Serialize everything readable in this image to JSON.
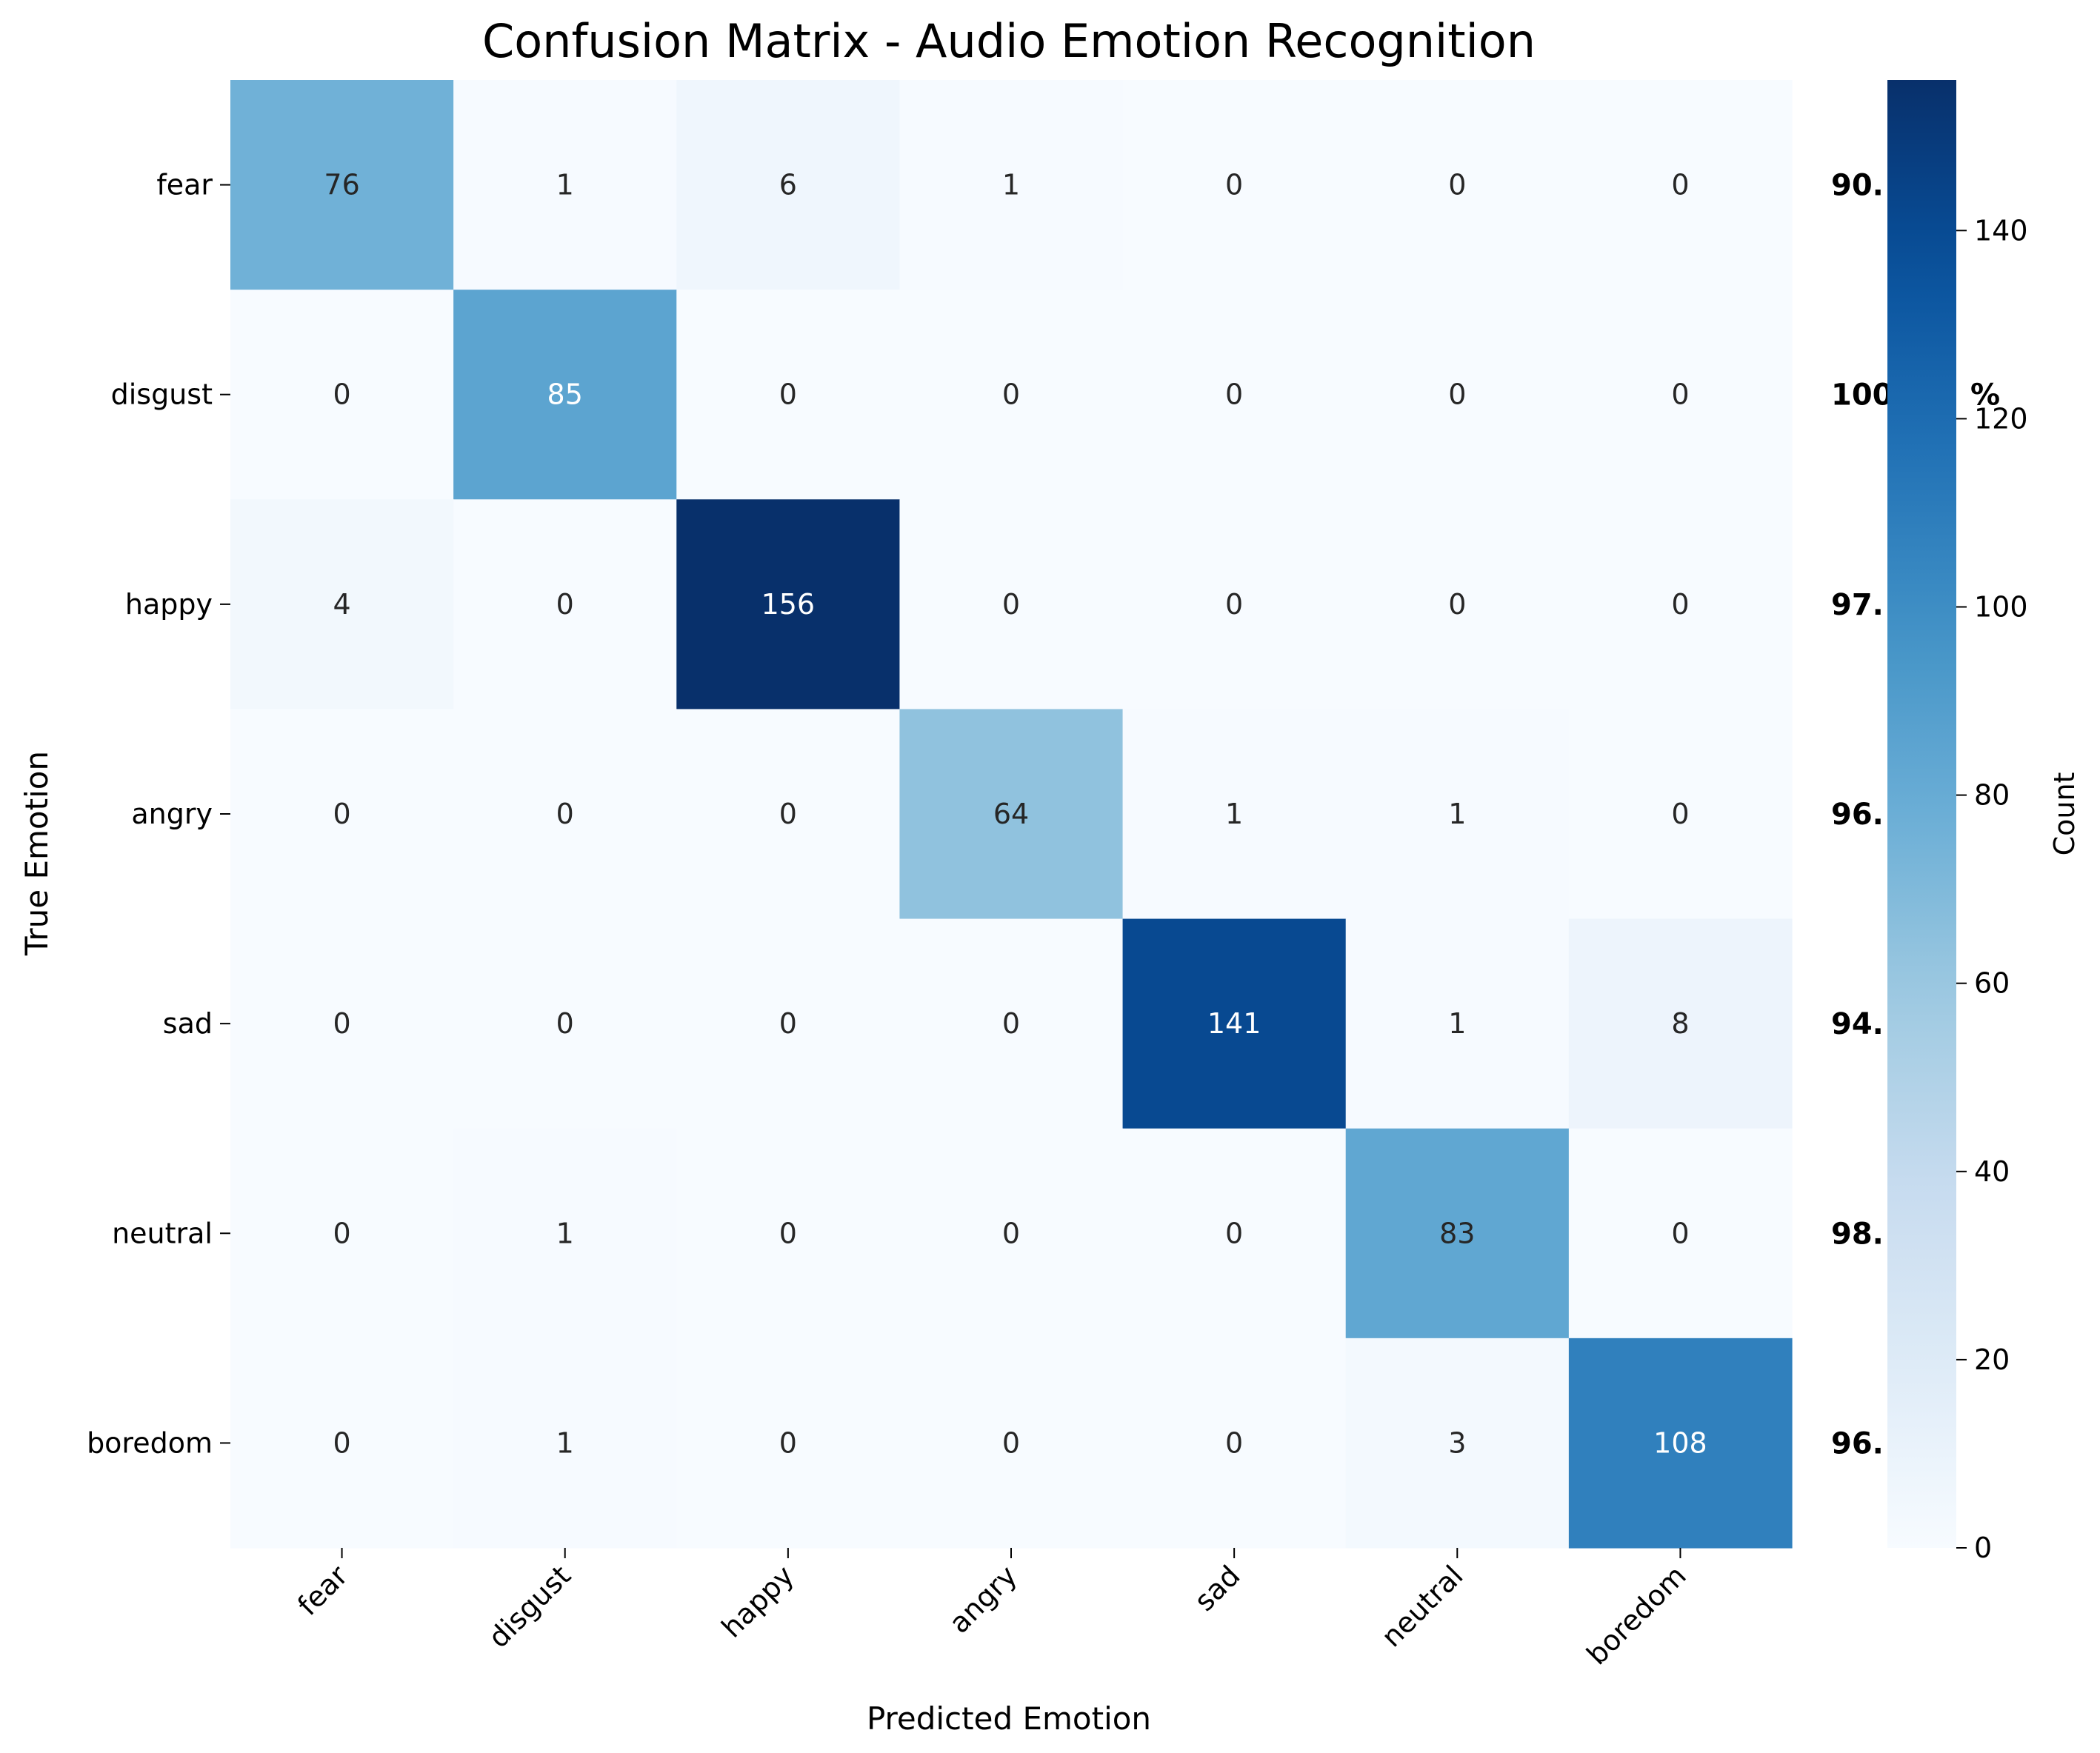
{
  "chart_data": {
    "type": "heatmap",
    "title": "Confusion Matrix - Audio Emotion Recognition",
    "xlabel": "Predicted Emotion",
    "ylabel": "True Emotion",
    "colorbar_label": "Count",
    "x_categories": [
      "fear",
      "disgust",
      "happy",
      "angry",
      "sad",
      "neutral",
      "boredom"
    ],
    "y_categories": [
      "fear",
      "disgust",
      "happy",
      "angry",
      "sad",
      "neutral",
      "boredom"
    ],
    "matrix": [
      [
        76,
        1,
        6,
        1,
        0,
        0,
        0
      ],
      [
        0,
        85,
        0,
        0,
        0,
        0,
        0
      ],
      [
        4,
        0,
        156,
        0,
        0,
        0,
        0
      ],
      [
        0,
        0,
        0,
        64,
        1,
        1,
        0
      ],
      [
        0,
        0,
        0,
        0,
        141,
        1,
        8
      ],
      [
        0,
        1,
        0,
        0,
        0,
        83,
        0
      ],
      [
        0,
        1,
        0,
        0,
        0,
        3,
        108
      ]
    ],
    "row_accuracy_labels": [
      "90.",
      "100",
      "97.",
      "96.",
      "94.",
      "98.",
      "96."
    ],
    "row_accuracy_label_suffixes": [
      "",
      "%",
      "",
      "",
      "",
      "",
      ""
    ],
    "color_range": [
      0,
      156
    ],
    "colorbar_ticks": [
      0,
      20,
      40,
      60,
      80,
      100,
      120,
      140
    ],
    "colormap": "Blues",
    "grid": false
  }
}
